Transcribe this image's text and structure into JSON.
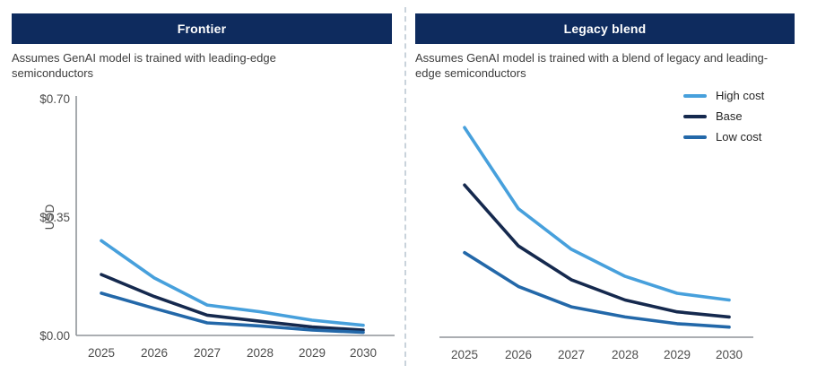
{
  "colors": {
    "header_bg": "#0e2b5e",
    "header_text": "#ffffff",
    "subtitle_text": "#3c3c3c",
    "axis": "#8f9499",
    "tick_text": "#4d4d4d",
    "divider": "#c9d3db",
    "high_cost": "#47a0dc",
    "base": "#15294e",
    "low_cost": "#2368a9"
  },
  "panels": [
    {
      "title": "Frontier",
      "subtitle": "Assumes GenAI model is trained with leading-edge semiconductors"
    },
    {
      "title": "Legacy blend",
      "subtitle": "Assumes GenAI model is trained with a blend of legacy and leading-edge semiconductors"
    }
  ],
  "legend": {
    "position": "top-right",
    "items": [
      {
        "label": "High cost",
        "color": "#47a0dc"
      },
      {
        "label": "Base",
        "color": "#15294e"
      },
      {
        "label": "Low cost",
        "color": "#2368a9"
      }
    ]
  },
  "chart_data": [
    {
      "type": "line",
      "title": "Frontier",
      "xlabel": "",
      "ylabel": "USD",
      "ylim": [
        0,
        0.7
      ],
      "grid": false,
      "y_axis_visible": true,
      "legend_visible": false,
      "y_ticks": [
        {
          "label": "$0.70",
          "value": 0.7
        },
        {
          "label": "$0.35",
          "value": 0.35
        },
        {
          "label": "$0.00",
          "value": 0.0
        }
      ],
      "categories": [
        "2025",
        "2026",
        "2027",
        "2028",
        "2029",
        "2030"
      ],
      "series": [
        {
          "name": "High cost",
          "color": "#47a0dc",
          "values": [
            0.28,
            0.17,
            0.09,
            0.07,
            0.045,
            0.03
          ]
        },
        {
          "name": "Base",
          "color": "#15294e",
          "values": [
            0.18,
            0.115,
            0.06,
            0.042,
            0.025,
            0.016
          ]
        },
        {
          "name": "Low cost",
          "color": "#2368a9",
          "values": [
            0.125,
            0.08,
            0.037,
            0.028,
            0.016,
            0.009
          ]
        }
      ]
    },
    {
      "type": "line",
      "title": "Legacy blend",
      "xlabel": "",
      "ylabel": "",
      "ylim": [
        0,
        0.7
      ],
      "grid": false,
      "y_axis_visible": false,
      "legend_visible": true,
      "y_ticks": [],
      "categories": [
        "2025",
        "2026",
        "2027",
        "2028",
        "2029",
        "2030"
      ],
      "series": [
        {
          "name": "High cost",
          "color": "#47a0dc",
          "values": [
            0.62,
            0.38,
            0.26,
            0.18,
            0.13,
            0.11
          ]
        },
        {
          "name": "Base",
          "color": "#15294e",
          "values": [
            0.45,
            0.27,
            0.17,
            0.11,
            0.075,
            0.06
          ]
        },
        {
          "name": "Low cost",
          "color": "#2368a9",
          "values": [
            0.25,
            0.15,
            0.09,
            0.06,
            0.04,
            0.03
          ]
        }
      ]
    }
  ]
}
